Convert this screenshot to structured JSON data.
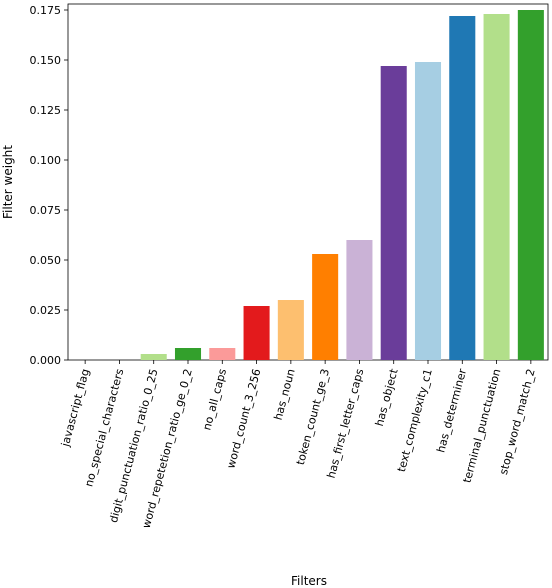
{
  "chart_data": {
    "type": "bar",
    "title": "",
    "xlabel": "Filters",
    "ylabel": "Filter weight",
    "ylim": [
      0,
      0.178
    ],
    "yticks": [
      0.0,
      0.025,
      0.05,
      0.075,
      0.1,
      0.125,
      0.15,
      0.175
    ],
    "ytick_labels": [
      "0.000",
      "0.025",
      "0.050",
      "0.075",
      "0.100",
      "0.125",
      "0.150",
      "0.175"
    ],
    "grid": false,
    "categories": [
      "javascript_flag",
      "no_special_characters",
      "digit_punctuation_ratio_0_25",
      "word_repetetion_ratio_ge_0_2",
      "no_all_caps",
      "word_count_3_256",
      "has_noun",
      "token_count_ge_3",
      "has_first_letter_caps",
      "has_object",
      "text_complexity_c1",
      "has_determiner",
      "terminal_punctuation",
      "stop_word_match_2"
    ],
    "values": [
      0.0,
      0.0,
      0.003,
      0.006,
      0.006,
      0.027,
      0.03,
      0.053,
      0.06,
      0.147,
      0.149,
      0.172,
      0.173,
      0.175
    ],
    "colors": [
      "#a6cee3",
      "#1f78b4",
      "#b2df8a",
      "#33a02c",
      "#fb9a99",
      "#e31a1c",
      "#fdbf6f",
      "#ff7f00",
      "#cab2d6",
      "#6a3d9a",
      "#a6cee3",
      "#1f78b4",
      "#b2df8a",
      "#33a02c"
    ]
  }
}
